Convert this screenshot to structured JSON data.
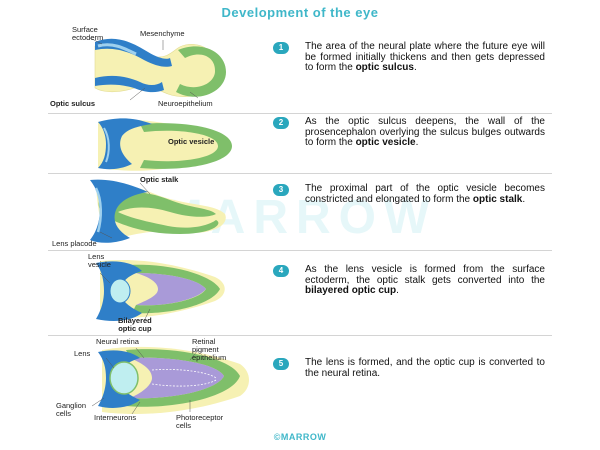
{
  "title": "Development of the eye",
  "watermark": "MARROW",
  "footer": "©MARROW",
  "steps": [
    {
      "number": "1",
      "text": "The area of the neural plate where the future eye will be formed initially thickens and then gets depressed to form the ",
      "bold": "optic sulcus",
      "tail": ".",
      "labels": {
        "surface_ectoderm": "Surface\nectoderm",
        "mesenchyme": "Mesenchyme",
        "optic_sulcus": "Optic sulcus",
        "neuroepithelium": "Neuroepithelium"
      }
    },
    {
      "number": "2",
      "text": "As the optic sulcus deepens, the wall of the prosencephalon overlying the sulcus bulges outwards to form the ",
      "bold": "optic vesicle",
      "tail": ".",
      "labels": {
        "optic_vesicle": "Optic vesicle"
      }
    },
    {
      "number": "3",
      "text": "The proximal part of the optic vesicle becomes constricted and elongated to form the ",
      "bold": "optic stalk",
      "tail": ".",
      "labels": {
        "optic_stalk": "Optic stalk",
        "lens_placode": "Lens placode"
      }
    },
    {
      "number": "4",
      "text": "As the lens vesicle is formed from the surface ectoderm, the optic stalk gets converted into the ",
      "bold": "bilayered optic cup",
      "tail": ".",
      "labels": {
        "lens_vesicle": "Lens\nvesicle",
        "bilayered_optic_cup": "Bilayered\noptic cup"
      }
    },
    {
      "number": "5",
      "text": "The lens is formed, and the optic cup is converted to the neural retina.",
      "bold": "",
      "tail": "",
      "labels": {
        "neural_retina": "Neural retina",
        "retinal_pigment_epithelium": "Retinal\npigment\nepithelium",
        "lens": "Lens",
        "ganglion_cells": "Ganglion\ncells",
        "interneurons": "Interneurons",
        "photoreceptor_cells": "Photoreceptor\ncells"
      }
    }
  ],
  "colors": {
    "accent": "#2aa7bd",
    "ectoderm_blue": "#2f7fc8",
    "neural_green": "#7fbf6a",
    "mesenchyme_yellow": "#f6f1b3",
    "retina_purple": "#a99ad8",
    "lens_cyan": "#bfeef0"
  }
}
